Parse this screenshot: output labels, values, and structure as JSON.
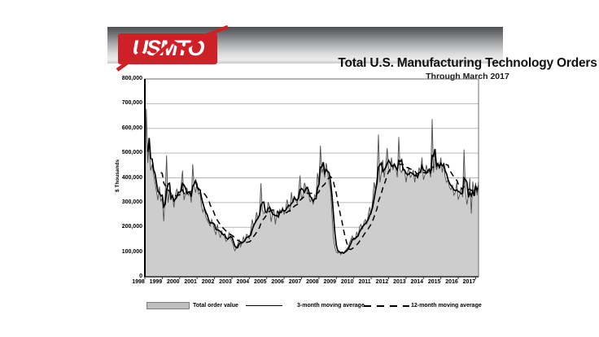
{
  "header": {
    "logo_text": "USMTO",
    "title": "Total U.S. Manufacturing Technology Orders",
    "subtitle": "Through March 2017"
  },
  "colors": {
    "logo_red": "#ce2127",
    "header_gradient_top": "#4e4f52",
    "header_gradient_bottom": "#c6c8ca",
    "area_fill": "#cdcdcd",
    "monthly_line": "#4f4f4f",
    "moving_average_line": "#000000",
    "gridline": "#b8b8b8"
  },
  "chart_data": {
    "type": "area",
    "title": "Total U.S. Manufacturing Technology Orders",
    "subtitle": "Through March 2017",
    "xlabel": "",
    "ylabel": "$ Thousands",
    "ylim": [
      0,
      800000
    ],
    "y_tick_step": 100000,
    "y_tick_labels": [
      "0",
      "100,000",
      "200,000",
      "300,000",
      "400,000",
      "500,000",
      "600,000",
      "700,000",
      "800,000"
    ],
    "x_tick_labels": [
      "1998",
      "1999",
      "2000",
      "2001",
      "2002",
      "2003",
      "2004",
      "2005",
      "2006",
      "2007",
      "2008",
      "2009",
      "2010",
      "2011",
      "2012",
      "2013",
      "2014",
      "2015",
      "2016",
      "2017"
    ],
    "frequency": "monthly",
    "x_range": [
      "Jan 1998",
      "Mar 2017"
    ],
    "grid": "horizontal",
    "legend_position": "bottom",
    "legend": [
      "Total order value",
      "3-month moving average",
      "12-month moving average"
    ],
    "series": [
      {
        "name": "Total order value",
        "style": "gray-filled-area-with-outline",
        "unit": "$ thousands",
        "values": [
          375000,
          680000,
          460000,
          545000,
          430000,
          455000,
          415000,
          380000,
          345000,
          310000,
          365000,
          305000,
          320000,
          225000,
          335000,
          490000,
          300000,
          345000,
          310000,
          330000,
          280000,
          330000,
          355000,
          340000,
          330000,
          372000,
          430000,
          310000,
          338000,
          360000,
          330000,
          342000,
          300000,
          455000,
          370000,
          340000,
          380000,
          335000,
          340000,
          290000,
          262000,
          280000,
          242000,
          228000,
          218000,
          205000,
          232000,
          215000,
          188000,
          170000,
          212000,
          180000,
          158000,
          185000,
          168000,
          162000,
          143000,
          150000,
          178000,
          160000,
          142000,
          128000,
          105000,
          118000,
          132000,
          152000,
          122000,
          138000,
          162000,
          142000,
          172000,
          168000,
          152000,
          188000,
          232000,
          202000,
          222000,
          262000,
          232000,
          252000,
          378000,
          272000,
          255000,
          262000,
          262000,
          302000,
          282000,
          222000,
          258000,
          272000,
          212000,
          262000,
          252000,
          272000,
          262000,
          282000,
          252000,
          272000,
          312000,
          285000,
          262000,
          342000,
          302000,
          322000,
          312000,
          295000,
          350000,
          410000,
          312000,
          332000,
          380000,
          362000,
          342000,
          330000,
          302000,
          322000,
          292000,
          332000,
          322000,
          420000,
          380000,
          530000,
          420000,
          440000,
          400000,
          460000,
          420000,
          380000,
          350000,
          250000,
          160000,
          120000,
          100000,
          95000,
          105000,
          90000,
          100000,
          95000,
          105000,
          112000,
          118000,
          135000,
          150000,
          165000,
          148000,
          152000,
          182000,
          162000,
          202000,
          212000,
          192000,
          222000,
          232000,
          212000,
          252000,
          282000,
          252000,
          312000,
          382000,
          352000,
          402000,
          575000,
          382000,
          422000,
          472000,
          402000,
          452000,
          520000,
          440000,
          422000,
          482000,
          432000,
          452000,
          442000,
          402000,
          565000,
          432000,
          422000,
          442000,
          432000,
          382000,
          422000,
          442000,
          402000,
          412000,
          432000,
          382000,
          422000,
          402000,
          442000,
          422000,
          482000,
          392000,
          412000,
          452000,
          422000,
          432000,
          402000,
          638000,
          422000,
          490000,
          432000,
          452000,
          442000,
          482000,
          422000,
          462000,
          402000,
          382000,
          392000,
          362000,
          352000,
          372000,
          330000,
          342000,
          382000,
          312000,
          332000,
          362000,
          322000,
          515000,
          342000,
          292000,
          330000,
          398000,
          255000,
          385000,
          340000,
          380000,
          330000,
          390000
        ]
      },
      {
        "name": "3-month moving average",
        "style": "solid-black-line",
        "derived_from": "Total order value",
        "window_months": 3
      },
      {
        "name": "12-month moving average",
        "style": "dashed-black-line",
        "derived_from": "Total order value",
        "window_months": 12
      }
    ]
  }
}
